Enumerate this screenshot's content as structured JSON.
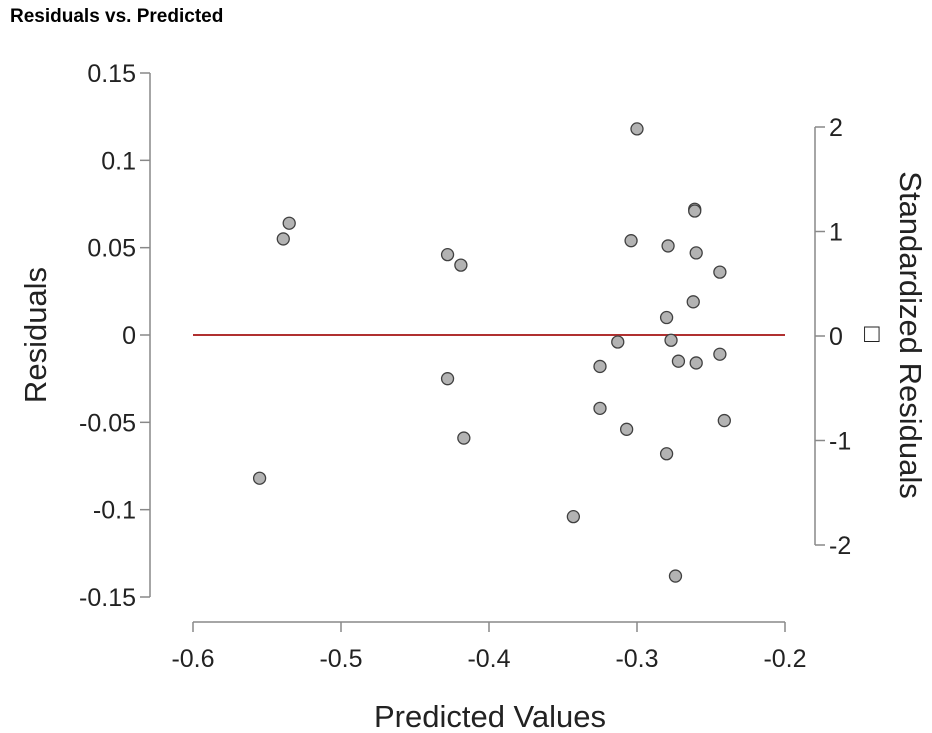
{
  "chart_data": {
    "type": "scatter",
    "title": "Residuals vs. Predicted",
    "xlabel": "Predicted Values",
    "ylabel": "Residuals",
    "y2label": "Standardized Residuals",
    "y2label_suffix": "□",
    "xlim": [
      -0.6,
      -0.2
    ],
    "ylim": [
      -0.15,
      0.15
    ],
    "y2lim": [
      -2,
      2
    ],
    "x_ticks": [
      -0.6,
      -0.5,
      -0.4,
      -0.3,
      -0.2
    ],
    "x_tick_labels": [
      "-0.6",
      "-0.5",
      "-0.4",
      "-0.3",
      "-0.2"
    ],
    "y_ticks": [
      -0.15,
      -0.1,
      -0.05,
      0,
      0.05,
      0.1,
      0.15
    ],
    "y_tick_labels": [
      "-0.15",
      "-0.1",
      "-0.05",
      "0",
      "0.05",
      "0.1",
      "0.15"
    ],
    "y2_ticks": [
      -2,
      -1,
      0,
      1,
      2
    ],
    "y2_tick_labels": [
      "-2",
      "-1",
      "0",
      "1",
      "2"
    ],
    "reference_line": {
      "y": 0,
      "x_range": [
        -0.6,
        -0.2
      ],
      "color": "#b03030"
    },
    "grid": false,
    "point_color": "#b3b3b3",
    "point_edge_color": "#404040",
    "points": [
      {
        "x": -0.555,
        "y": -0.082
      },
      {
        "x": -0.539,
        "y": 0.055
      },
      {
        "x": -0.535,
        "y": 0.064
      },
      {
        "x": -0.428,
        "y": 0.046
      },
      {
        "x": -0.428,
        "y": -0.025
      },
      {
        "x": -0.419,
        "y": 0.04
      },
      {
        "x": -0.417,
        "y": -0.059
      },
      {
        "x": -0.343,
        "y": -0.104
      },
      {
        "x": -0.325,
        "y": -0.018
      },
      {
        "x": -0.325,
        "y": -0.042
      },
      {
        "x": -0.313,
        "y": -0.004
      },
      {
        "x": -0.307,
        "y": -0.054
      },
      {
        "x": -0.304,
        "y": 0.054
      },
      {
        "x": -0.3,
        "y": 0.118
      },
      {
        "x": -0.28,
        "y": 0.01
      },
      {
        "x": -0.28,
        "y": -0.068
      },
      {
        "x": -0.279,
        "y": 0.051
      },
      {
        "x": -0.277,
        "y": -0.003
      },
      {
        "x": -0.274,
        "y": -0.138
      },
      {
        "x": -0.272,
        "y": -0.015
      },
      {
        "x": -0.262,
        "y": 0.019
      },
      {
        "x": -0.261,
        "y": 0.072
      },
      {
        "x": -0.261,
        "y": 0.071
      },
      {
        "x": -0.26,
        "y": 0.047
      },
      {
        "x": -0.26,
        "y": -0.016
      },
      {
        "x": -0.244,
        "y": 0.036
      },
      {
        "x": -0.244,
        "y": -0.011
      },
      {
        "x": -0.241,
        "y": -0.049
      }
    ]
  }
}
